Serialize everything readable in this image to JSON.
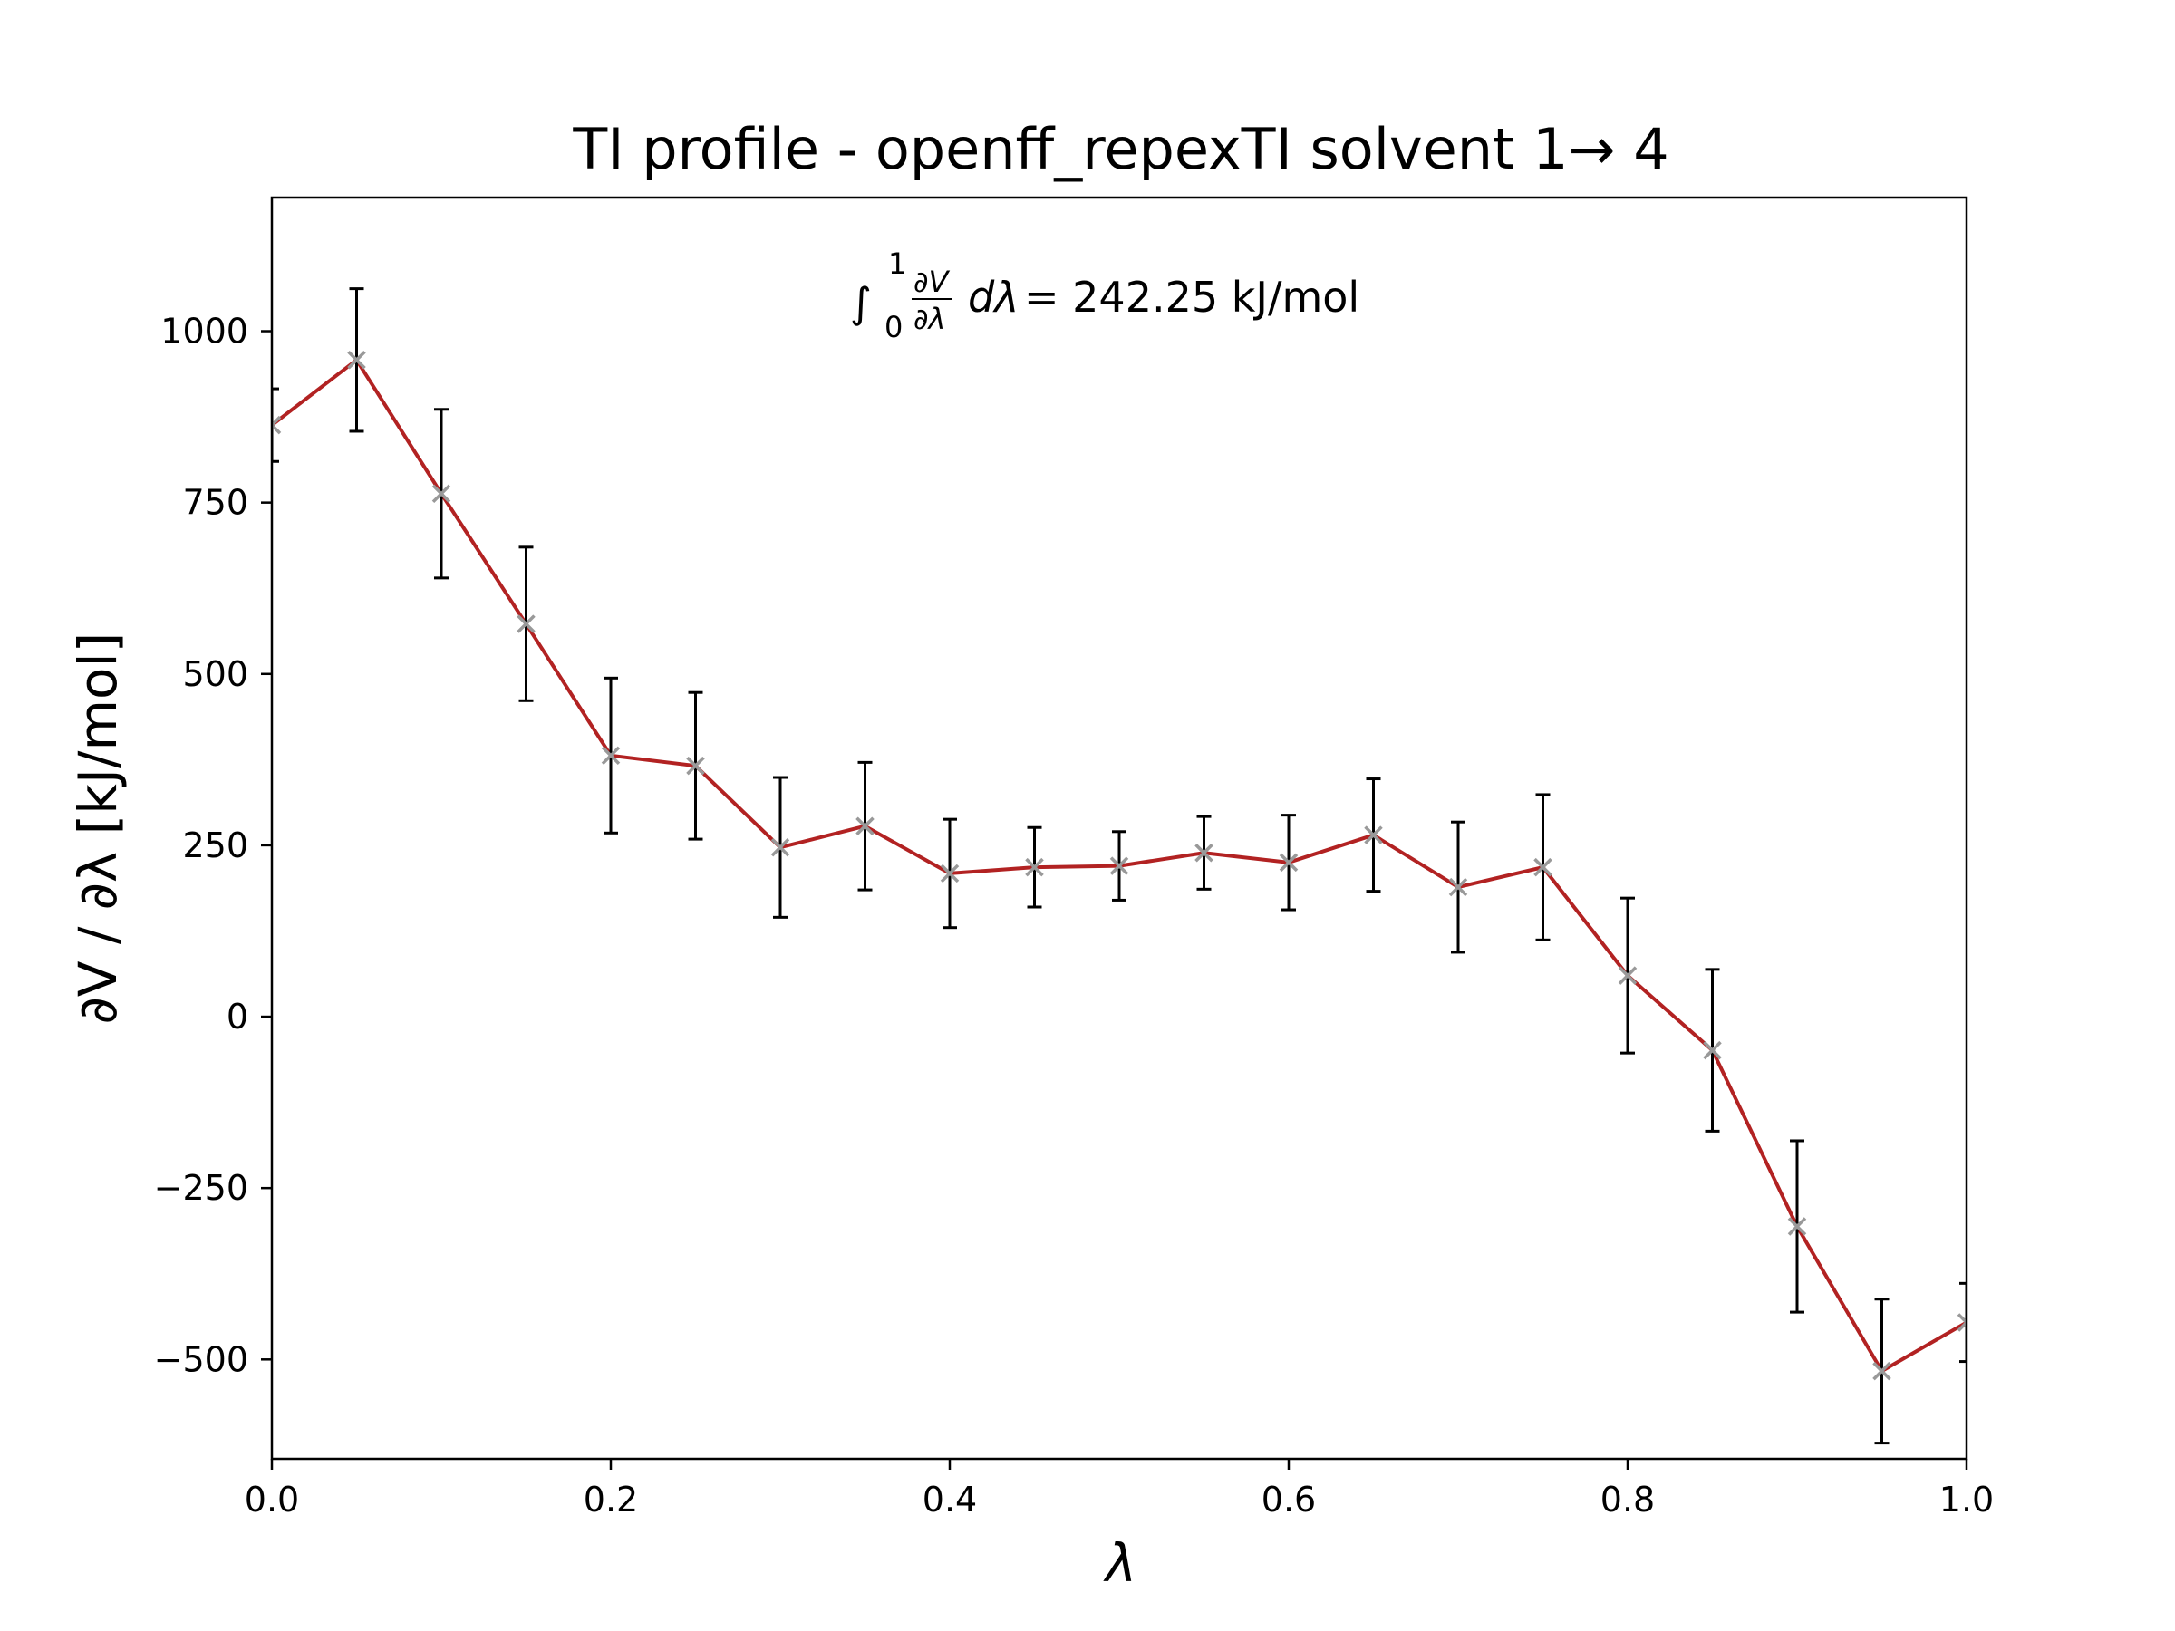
{
  "chart_data": {
    "type": "line",
    "title": "TI profile - openff_repexTI solvent 1→ 4",
    "xlabel": "λ",
    "ylabel": "∂V / ∂λ [kJ/mol]",
    "xlim": [
      0.0,
      1.0
    ],
    "ylim": [
      -645,
      1195
    ],
    "x_ticks": [
      0.0,
      0.2,
      0.4,
      0.6,
      0.8,
      1.0
    ],
    "x_tick_labels": [
      "0.0",
      "0.2",
      "0.4",
      "0.6",
      "0.8",
      "1.0"
    ],
    "y_ticks": [
      -500,
      -250,
      0,
      250,
      500,
      750,
      1000
    ],
    "y_tick_labels": [
      "−500",
      "−250",
      "0",
      "250",
      "500",
      "750",
      "1000"
    ],
    "grid": false,
    "annotation": {
      "text": "= 242.25 kJ/mol",
      "integral_lower": "0",
      "integral_upper": "1",
      "fraction_num": "∂V",
      "fraction_den": "∂λ",
      "dlambda": "dλ"
    },
    "series": [
      {
        "x": [
          0.0,
          0.05,
          0.1,
          0.15,
          0.2,
          0.25,
          0.3,
          0.35,
          0.4,
          0.45,
          0.5,
          0.55,
          0.6,
          0.65,
          0.7,
          0.75,
          0.8,
          0.85,
          0.9,
          0.95,
          1.0
        ],
        "values": [
          863,
          958,
          763,
          573,
          381,
          366,
          247,
          278,
          209,
          218,
          220,
          239,
          225,
          265,
          189,
          218,
          60,
          -49,
          -306,
          -517,
          -446
        ],
        "errors": [
          53,
          104,
          123,
          112,
          113,
          107,
          102,
          93,
          79,
          58,
          50,
          53,
          69,
          82,
          95,
          106,
          113,
          118,
          125,
          105,
          57
        ],
        "line_color": "#b22222",
        "marker_color": "#999999",
        "errorbar_color": "#000000"
      }
    ]
  }
}
